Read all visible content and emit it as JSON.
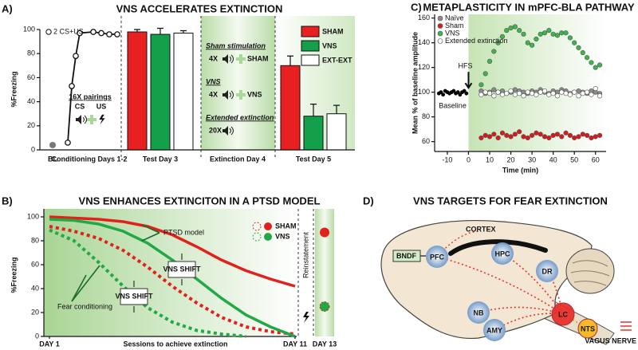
{
  "chart_data": [
    {
      "type": "bar",
      "panel_label": "A)",
      "title": "VNS ACCELERATES EXTINCTION",
      "y_label": "%Freezing",
      "ylim": [
        0,
        100
      ],
      "yticks": [
        0,
        20,
        40,
        60,
        80,
        100
      ],
      "baseline": {
        "label": "BL",
        "value": 4,
        "color": "#777777"
      },
      "conditioning": {
        "label": "Conditioning Days 1-2",
        "values": [
          6,
          53,
          78,
          97,
          98,
          97,
          96,
          96
        ],
        "first_trial_label": "2 CS+US",
        "pairings_label": "16X pairings",
        "cs_label": "CS",
        "us_label": "US"
      },
      "categories": [
        "Test Day 3",
        "Test Day 5"
      ],
      "series": [
        {
          "name": "SHAM",
          "color": "#e8201f",
          "values": [
            98,
            70
          ],
          "errors": [
            2,
            8
          ]
        },
        {
          "name": "VNS",
          "color": "#14a04a",
          "values": [
            96,
            28
          ],
          "errors": [
            5,
            10
          ]
        },
        {
          "name": "EXT-EXT",
          "color": "#ffffff",
          "values": [
            97,
            30
          ],
          "errors": [
            2,
            7
          ]
        }
      ],
      "extinction": {
        "label": "Extinction Day 4",
        "protocols": [
          {
            "title": "Sham stimulation",
            "count": "4X",
            "result": "SHAM",
            "color": "#e8201f"
          },
          {
            "title": "VNS",
            "count": "4X",
            "result": "VNS",
            "color": "#14a04a"
          },
          {
            "title": "Extended extinction",
            "count": "20X"
          }
        ]
      }
    },
    {
      "type": "line",
      "panel_label": "B)",
      "title": "VNS ENHANCES EXTINCITON IN A PTSD MODEL",
      "y_label": "%Freezing",
      "x_label": "Sessions to achieve extinction",
      "ylim": [
        0,
        100
      ],
      "yticks": [
        0,
        20,
        40,
        60,
        80,
        100
      ],
      "x": [
        1,
        2,
        3,
        4,
        5,
        6,
        7,
        8,
        9,
        10,
        11
      ],
      "xlim": [
        0.8,
        11.2
      ],
      "xticks": [
        {
          "value": 1,
          "label": "DAY 1"
        },
        {
          "value": 11,
          "label": "DAY 11"
        }
      ],
      "series": [
        {
          "name": "SHAM",
          "color": "#e3211c",
          "values": [
            100,
            99,
            98,
            96,
            92,
            85,
            75,
            64,
            55,
            48,
            42
          ],
          "fear_conditioning_values": [
            92,
            88,
            82,
            72,
            58,
            42,
            28,
            16,
            8,
            4,
            2
          ],
          "reinstatement": 87
        },
        {
          "name": "VNS",
          "color": "#22a845",
          "values": [
            98,
            97,
            94,
            88,
            78,
            64,
            48,
            32,
            18,
            8,
            0
          ],
          "fear_conditioning_values": [
            89,
            80,
            62,
            42,
            24,
            12,
            5,
            2,
            0,
            null,
            null
          ],
          "reinstatement": 25
        }
      ],
      "reinstatement_label": "Reinstatement",
      "reinstatement_tick": "DAY 13",
      "ptsd_label": "PTSD model",
      "fear_label": "Fear conditioning",
      "shift_labels": [
        "VNS SHIFT",
        "VNS SHIFT"
      ]
    },
    {
      "type": "scatter",
      "panel_label": "C)",
      "title": "METAPLASTICITY IN mPFC-BLA PATHWAY",
      "x_label": "Time (min)",
      "y_label": "Mean % of baseline amplitude",
      "xlim": [
        -16,
        65
      ],
      "ylim": [
        52,
        163
      ],
      "xticks": [
        -10,
        0,
        10,
        20,
        30,
        40,
        50,
        60
      ],
      "yticks": [
        60,
        80,
        100,
        120,
        140,
        160
      ],
      "annotations": [
        {
          "text": "HFS",
          "x": 0
        }
      ],
      "baseline": {
        "label": "Baseline",
        "color": "#000000",
        "x": [
          -14,
          -13,
          -12,
          -11,
          -10,
          -9,
          -8,
          -7,
          -6,
          -5,
          -4,
          -3,
          -2,
          -1
        ],
        "values": [
          99,
          100,
          98,
          101,
          100,
          99,
          100,
          101,
          99,
          100,
          98,
          100,
          101,
          99
        ]
      },
      "x": [
        6,
        8,
        10,
        12,
        14,
        16,
        18,
        20,
        22,
        24,
        26,
        28,
        30,
        32,
        34,
        36,
        38,
        40,
        42,
        44,
        46,
        48,
        50,
        52,
        54,
        56,
        58,
        60,
        62
      ],
      "series": [
        {
          "name": "Naïve",
          "color": "#8a8a8a",
          "values": [
            101,
            99,
            100,
            102,
            100,
            101,
            99,
            100,
            102,
            101,
            100,
            99,
            101,
            100,
            102,
            100,
            99,
            101,
            100,
            102,
            101,
            99,
            100,
            101,
            100,
            99,
            101,
            100,
            99
          ]
        },
        {
          "name": "Sham",
          "color": "#d7191c",
          "values": [
            63,
            65,
            64,
            66,
            63,
            67,
            65,
            64,
            66,
            68,
            64,
            63,
            65,
            67,
            66,
            64,
            63,
            65,
            66,
            64,
            67,
            65,
            63,
            64,
            66,
            65,
            63,
            64,
            65
          ]
        },
        {
          "name": "VNS",
          "color": "#3cb54a",
          "values": [
            106,
            115,
            125,
            133,
            140,
            145,
            150,
            152,
            153,
            150,
            147,
            140,
            138,
            143,
            147,
            148,
            150,
            147,
            146,
            148,
            148,
            144,
            140,
            136,
            132,
            128,
            124,
            120,
            122
          ]
        },
        {
          "name": "Extended extinction",
          "color": "#ffffff",
          "values": [
            98,
            100,
            99,
            97,
            100,
            98,
            99,
            101,
            98,
            99,
            97,
            100,
            99,
            98,
            100,
            101,
            98,
            99,
            97,
            100,
            99,
            98,
            100,
            97,
            99,
            100,
            98,
            103,
            97
          ]
        }
      ]
    }
  ],
  "diagram": {
    "panel_label": "D)",
    "title": "VNS TARGETS FOR FEAR EXTINCTION",
    "bdnf": "BNDF",
    "cortex": "CORTEX",
    "vagus": "VAGUS NERVE",
    "nodes": [
      {
        "label": "PFC",
        "color": "#8fb3de"
      },
      {
        "label": "HPC",
        "color": "#8fb3de"
      },
      {
        "label": "DR",
        "color": "#8fb3de"
      },
      {
        "label": "NB",
        "color": "#8fb3de"
      },
      {
        "label": "AMY",
        "color": "#8fb3de"
      },
      {
        "label": "LC",
        "color": "#e8312a"
      },
      {
        "label": "NTS",
        "color": "#f5b921"
      }
    ]
  }
}
